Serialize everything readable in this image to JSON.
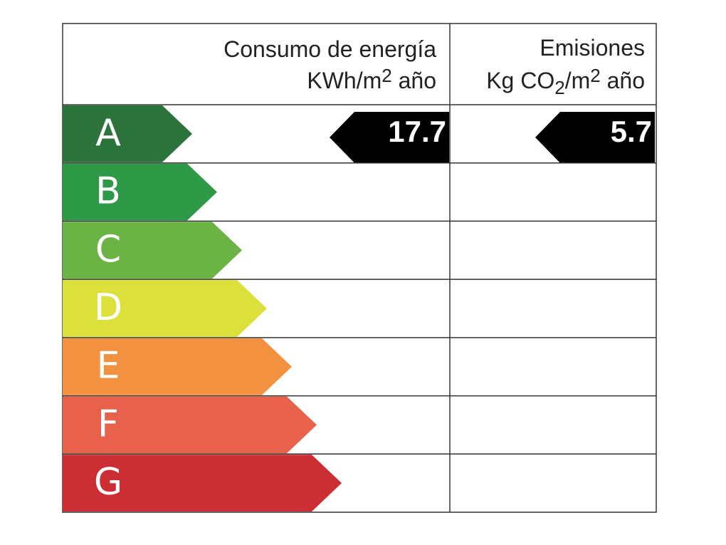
{
  "header": {
    "energy": {
      "title": "Consumo de energía",
      "unit": [
        "KWh/m",
        "2",
        " año"
      ]
    },
    "emissions": {
      "title": "Emisiones",
      "unit": [
        "Kg CO",
        "2",
        "/m",
        "2",
        " año"
      ]
    }
  },
  "rows": [
    {
      "letter": "A",
      "color": "#2b723b",
      "energy": 17.7,
      "emissions": 5.7
    },
    {
      "letter": "B",
      "color": "#2e9a48"
    },
    {
      "letter": "C",
      "color": "#6bb345"
    },
    {
      "letter": "D",
      "color": "#dce03b"
    },
    {
      "letter": "E",
      "color": "#f2913f"
    },
    {
      "letter": "F",
      "color": "#e8624b"
    },
    {
      "letter": "G",
      "color": "#cb2f34"
    }
  ]
}
